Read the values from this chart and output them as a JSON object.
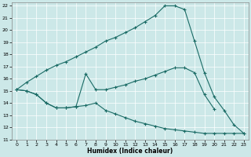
{
  "xlabel": "Humidex (Indice chaleur)",
  "xlim": [
    -0.5,
    23.5
  ],
  "ylim": [
    11,
    22.3
  ],
  "yticks": [
    11,
    12,
    13,
    14,
    15,
    16,
    17,
    18,
    19,
    20,
    21,
    22
  ],
  "xticks": [
    0,
    1,
    2,
    3,
    4,
    5,
    6,
    7,
    8,
    9,
    10,
    11,
    12,
    13,
    14,
    15,
    16,
    17,
    18,
    19,
    20,
    21,
    22,
    23
  ],
  "bg_color": "#cce8e8",
  "line_color": "#1a6b65",
  "line1_x": [
    0,
    1,
    2,
    3,
    4,
    5,
    6,
    7,
    8,
    9,
    10,
    11,
    12,
    13,
    14,
    15,
    16,
    17,
    18,
    19,
    20,
    21,
    22,
    23
  ],
  "line1_y": [
    15.1,
    15.7,
    16.2,
    16.7,
    17.1,
    17.4,
    17.8,
    18.2,
    18.6,
    19.1,
    19.4,
    19.8,
    20.2,
    20.7,
    21.2,
    22.0,
    22.0,
    21.7,
    19.1,
    16.5,
    14.5,
    13.4,
    12.2,
    11.5
  ],
  "line2_x": [
    0,
    1,
    2,
    3,
    4,
    5,
    6,
    7,
    8,
    9,
    10,
    11,
    12,
    13,
    14,
    15,
    16,
    17,
    18,
    19,
    20
  ],
  "line2_y": [
    15.1,
    15.0,
    14.7,
    14.0,
    13.6,
    13.6,
    13.7,
    16.4,
    15.1,
    15.1,
    15.3,
    15.5,
    15.8,
    16.0,
    16.3,
    16.6,
    16.9,
    16.9,
    16.5,
    14.7,
    13.5
  ],
  "line3_x": [
    0,
    1,
    2,
    3,
    4,
    5,
    6,
    7,
    8,
    9,
    10,
    11,
    12,
    13,
    14,
    15,
    16,
    17,
    18,
    19,
    20,
    21,
    22,
    23
  ],
  "line3_y": [
    15.1,
    15.0,
    14.7,
    14.0,
    13.6,
    13.6,
    13.7,
    13.8,
    14.0,
    13.4,
    13.1,
    12.8,
    12.5,
    12.3,
    12.1,
    11.9,
    11.8,
    11.7,
    11.6,
    11.5,
    11.5,
    11.5,
    11.5,
    11.5
  ]
}
